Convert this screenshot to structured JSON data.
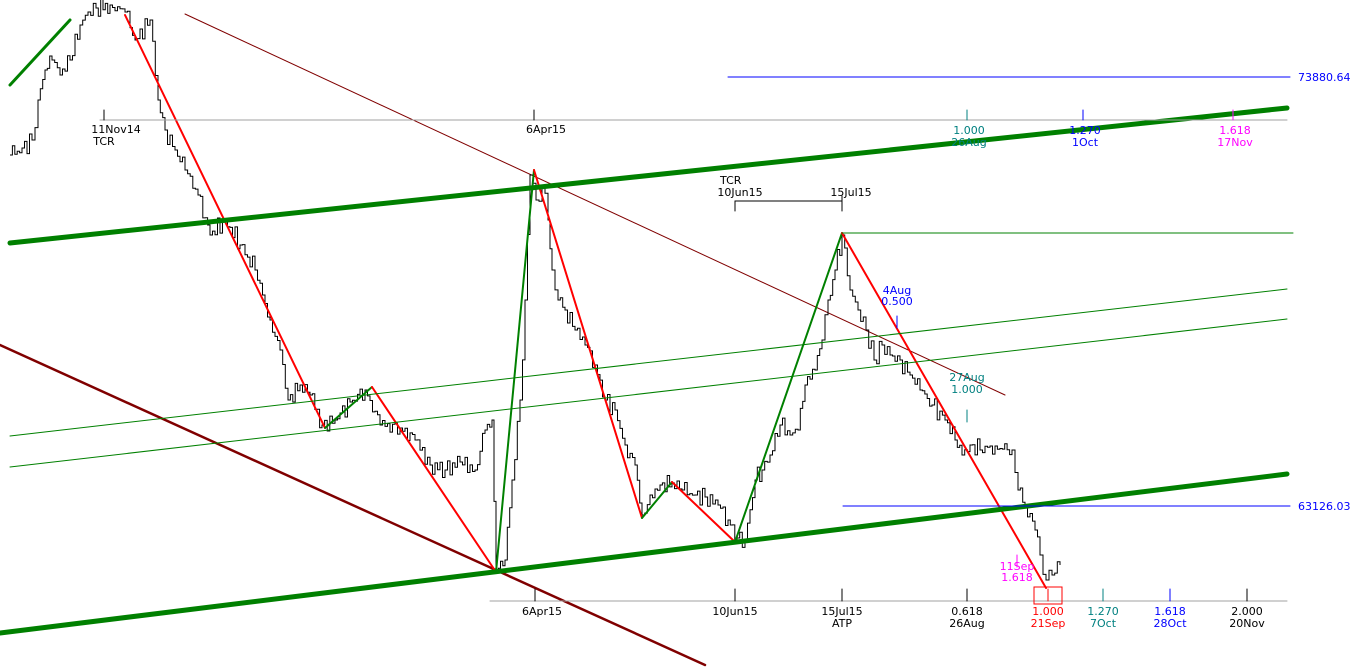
{
  "chart_data": {
    "type": "line",
    "title": "",
    "xlabel": "",
    "ylabel": "",
    "grid": false,
    "colors": {
      "price": "#000000",
      "down_wave": "#ff0000",
      "up_wave": "#008000",
      "channel": "#008000",
      "trendline": "#800000",
      "level": "#0000ff",
      "fib_1000": "#008080",
      "fib_1270": "#0000ff",
      "fib_1618": "#ff00ff",
      "tick": "#000000"
    },
    "price_levels": [
      {
        "label": "73880.64",
        "value": 73880.64
      },
      {
        "label": "63126.03",
        "value": 63126.03
      }
    ],
    "top_timeline": [
      {
        "date": "11Nov14",
        "sub": "TCR",
        "color": "#000000"
      },
      {
        "date": "6Apr15",
        "sub": "",
        "color": "#000000"
      },
      {
        "date": "26Aug",
        "sub": "1.000",
        "color": "#008080"
      },
      {
        "date": "1Oct",
        "sub": "1.270",
        "color": "#0000ff"
      },
      {
        "date": "17Nov",
        "sub": "1.618",
        "color": "#ff00ff"
      }
    ],
    "mid_timeline": {
      "label": "TCR",
      "dates": [
        "10Jun15",
        "15Jul15"
      ]
    },
    "bottom_timeline": [
      {
        "date": "6Apr15",
        "sub": "",
        "color": "#000000"
      },
      {
        "date": "10Jun15",
        "sub": "",
        "color": "#000000"
      },
      {
        "date": "15Jul15",
        "sub": "ATP",
        "color": "#000000"
      },
      {
        "date": "0.618",
        "sub": "26Aug",
        "color": "#000000"
      },
      {
        "date": "1.000",
        "sub": "21Sep",
        "color": "#ff0000"
      },
      {
        "date": "1.270",
        "sub": "7Oct",
        "color": "#008080"
      },
      {
        "date": "1.618",
        "sub": "28Oct",
        "color": "#0000ff"
      },
      {
        "date": "2.000",
        "sub": "20Nov",
        "color": "#000000"
      }
    ],
    "annotations": [
      {
        "date": "4Aug",
        "ratio": "0.500",
        "color": "#0000ff"
      },
      {
        "date": "27Aug",
        "ratio": "1.000",
        "color": "#008080"
      },
      {
        "date": "11Sep",
        "ratio": "1.618",
        "color": "#ff00ff"
      }
    ],
    "waves": [
      {
        "from": "11Nov14",
        "to": "6Apr15",
        "direction": "down"
      },
      {
        "from": "6Apr15",
        "to": "6Apr15",
        "direction": "up"
      },
      {
        "from": "6Apr15",
        "to": "10Jun15",
        "direction": "down"
      },
      {
        "from": "10Jun15",
        "to": "15Jul15",
        "direction": "up"
      },
      {
        "from": "15Jul15",
        "to": "21Sep",
        "direction": "down"
      }
    ]
  }
}
